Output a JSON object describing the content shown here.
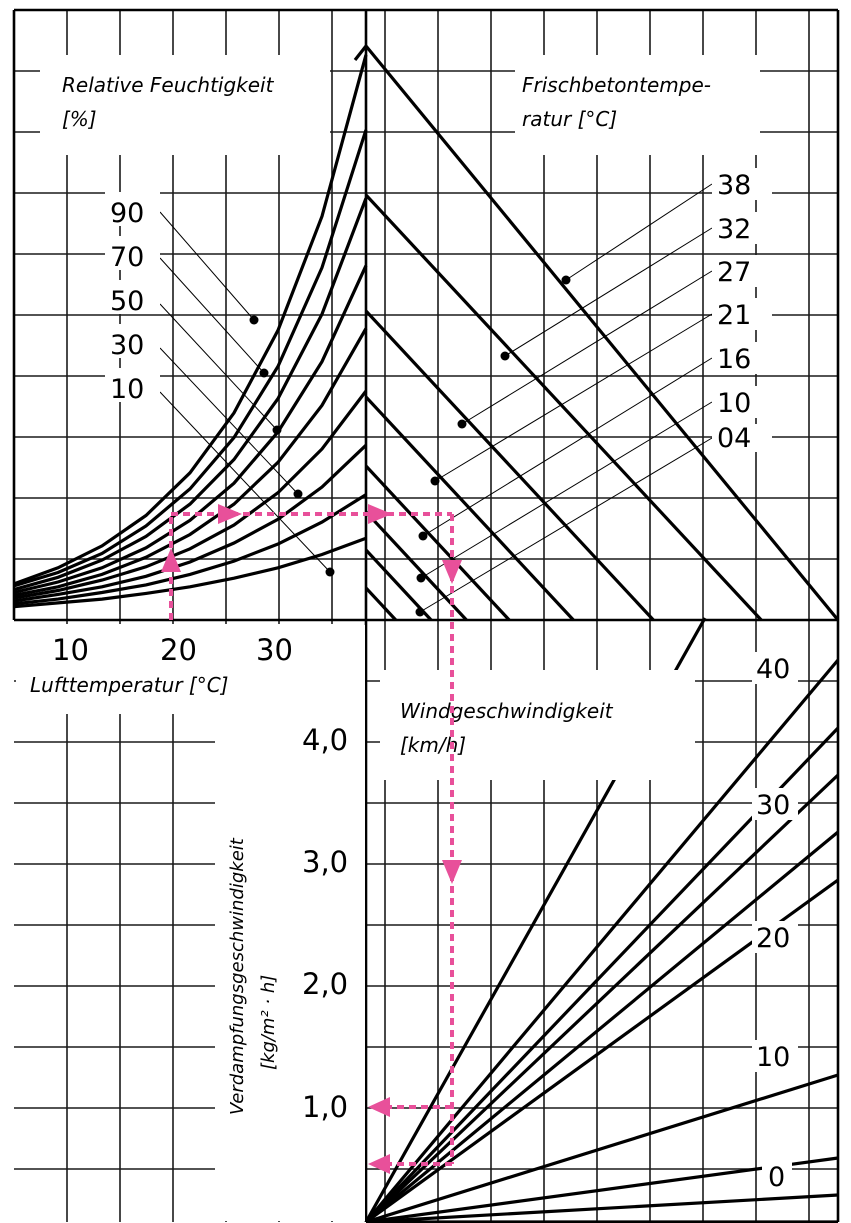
{
  "chart_data": [
    {
      "type": "line",
      "panel": "top-left",
      "xlabel": "Lufttemperatur [°C]",
      "xticks": [
        "10",
        "20",
        "30"
      ],
      "legend_title": [
        "Relative Feuchtigkeit",
        "[%]"
      ],
      "series_labels": [
        "90",
        "70",
        "50",
        "30",
        "10"
      ],
      "x": [
        0,
        5,
        10,
        15,
        20,
        25,
        30,
        35,
        40
      ],
      "series": [
        {
          "values": [
            0.38,
            0.55,
            0.78,
            1.1,
            1.55,
            2.18,
            3.05,
            4.25,
            5.95
          ]
        },
        {
          "values": [
            0.36,
            0.5,
            0.7,
            0.99,
            1.38,
            1.92,
            2.67,
            3.71,
            5.16
          ]
        },
        {
          "values": [
            0.32,
            0.45,
            0.63,
            0.88,
            1.22,
            1.69,
            2.33,
            3.22,
            4.44
          ]
        },
        {
          "values": [
            0.29,
            0.4,
            0.55,
            0.76,
            1.05,
            1.44,
            1.98,
            2.72,
            3.73
          ]
        },
        {
          "values": [
            0.26,
            0.35,
            0.48,
            0.66,
            0.9,
            1.22,
            1.66,
            2.26,
            3.07
          ]
        },
        {
          "values": [
            0.23,
            0.31,
            0.42,
            0.56,
            0.75,
            1.0,
            1.34,
            1.8,
            2.41
          ]
        },
        {
          "values": [
            0.2,
            0.27,
            0.35,
            0.46,
            0.61,
            0.81,
            1.06,
            1.4,
            1.84
          ]
        },
        {
          "values": [
            0.17,
            0.22,
            0.29,
            0.37,
            0.48,
            0.62,
            0.8,
            1.03,
            1.32
          ]
        },
        {
          "values": [
            0.14,
            0.18,
            0.22,
            0.28,
            0.35,
            0.44,
            0.55,
            0.69,
            0.86
          ]
        }
      ]
    },
    {
      "type": "line",
      "panel": "top-right",
      "legend_title": [
        "Frischbetontempe-",
        "ratur [°C]"
      ],
      "series_labels": [
        "38",
        "32",
        "27",
        "21",
        "16",
        "10",
        "04"
      ]
    },
    {
      "type": "line",
      "panel": "bottom-right",
      "ylabel": [
        "Verdampfungsgeschwindigkeit",
        "[kg/m² · h]"
      ],
      "yticks": [
        "1,0",
        "2,0",
        "3,0",
        "4,0"
      ],
      "legend_title": [
        "Windgeschwindigkeit",
        "[km/h]"
      ],
      "series_labels": [
        "40",
        "30",
        "20",
        "10",
        "0"
      ]
    }
  ]
}
